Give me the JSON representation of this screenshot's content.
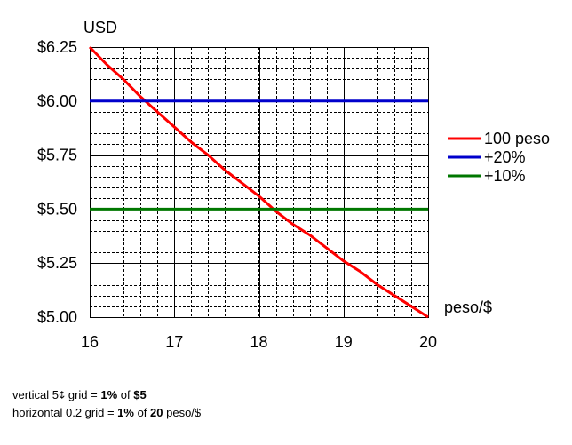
{
  "chart_data": {
    "type": "line",
    "title": "",
    "xlabel": "peso/$",
    "ylabel": "USD",
    "xlim": [
      16,
      20
    ],
    "ylim": [
      5.0,
      6.25
    ],
    "x_ticks": [
      16,
      17,
      18,
      19,
      20
    ],
    "x_tick_labels": [
      "16",
      "17",
      "18",
      "19",
      "20"
    ],
    "y_ticks": [
      5.0,
      5.25,
      5.5,
      5.75,
      6.0,
      6.25
    ],
    "y_tick_labels": [
      "$5.00",
      "$5.25",
      "$5.50",
      "$5.75",
      "$6.00",
      "$6.25"
    ],
    "grid": true,
    "minor_grid": {
      "x_step": 0.2,
      "y_step": 0.05
    },
    "legend_position": "right",
    "series": [
      {
        "name": "100 peso",
        "color": "#ff0000",
        "x": [
          16.0,
          16.2,
          16.4,
          16.6,
          16.8,
          17.0,
          17.2,
          17.4,
          17.6,
          17.8,
          18.0,
          18.2,
          18.4,
          18.6,
          18.8,
          19.0,
          19.2,
          19.4,
          19.6,
          19.8,
          20.0
        ],
        "y": [
          6.25,
          6.17,
          6.1,
          6.02,
          5.95,
          5.88,
          5.81,
          5.75,
          5.68,
          5.62,
          5.56,
          5.49,
          5.43,
          5.38,
          5.32,
          5.26,
          5.21,
          5.15,
          5.1,
          5.05,
          5.0
        ]
      },
      {
        "name": "+20%",
        "color": "#0000cc",
        "x": [
          16,
          20
        ],
        "y": [
          6.0,
          6.0
        ]
      },
      {
        "name": "+10%",
        "color": "#007700",
        "x": [
          16,
          20
        ],
        "y": [
          5.5,
          5.5
        ]
      }
    ]
  },
  "notes": {
    "line1": {
      "p1": "vertical 5¢ grid = ",
      "b1": "1%",
      "p2": " of ",
      "b2": "$5"
    },
    "line2": {
      "p1": "horizontal 0.2 grid = ",
      "b1": "1%",
      "p2": " of ",
      "b2": "20",
      "p3": " peso/$"
    }
  }
}
